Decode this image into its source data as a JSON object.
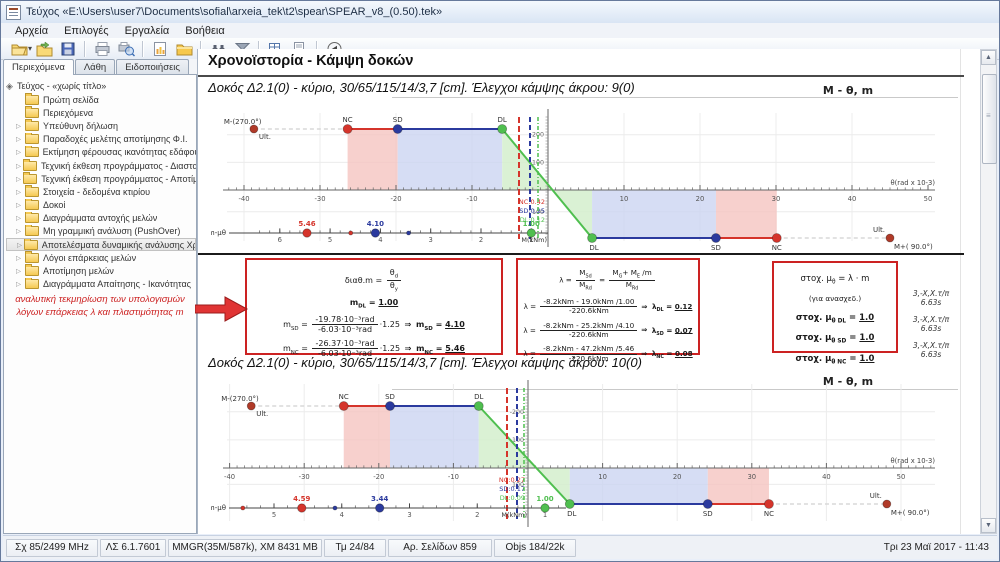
{
  "window": {
    "title": "Τεύχος «E:\\Users\\user7\\Documents\\sofial\\arxeia_tek\\t2\\spear\\SPEAR_v8_(0.50).tek»"
  },
  "menu": {
    "items": [
      "Αρχεία",
      "Επιλογές",
      "Εργαλεία",
      "Βοήθεια"
    ]
  },
  "toolbar": {
    "icons": [
      "open-file",
      "import-file",
      "save",
      "print",
      "print-preview",
      "chart-document",
      "folder",
      "search-binoculars",
      "filter",
      "export-table",
      "report-save",
      "back"
    ]
  },
  "sidebar": {
    "tabs": [
      "Περιεχόμενα",
      "Λάθη",
      "Ειδοποιήσεις"
    ],
    "active_tab": "Περιεχόμενα",
    "root_label": "Τεύχος - «χωρίς τίτλο»",
    "items": [
      {
        "label": "Πρώτη σελίδα",
        "expandable": false,
        "selected": false
      },
      {
        "label": "Περιεχόμενα",
        "expandable": false,
        "selected": false
      },
      {
        "label": "Υπεύθυνη δήλωση",
        "expandable": true,
        "selected": false
      },
      {
        "label": "Παραδοχές μελέτης αποτίμησης Φ.Ι.",
        "expandable": true,
        "selected": false
      },
      {
        "label": "Εκτίμηση φέρουσας ικανότητας εδάφους",
        "expandable": true,
        "selected": false
      },
      {
        "label": "Τεχνική έκθεση προγράμματος - Διαστασιολόγηση",
        "expandable": true,
        "selected": false
      },
      {
        "label": "Τεχνική έκθεση προγράμματος - Αποτίμησης Φ.Ι.",
        "expandable": true,
        "selected": false
      },
      {
        "label": "Στοιχεία - δεδομένα κτιρίου",
        "expandable": true,
        "selected": false
      },
      {
        "label": "Δοκοί",
        "expandable": true,
        "selected": false
      },
      {
        "label": "Διαγράμματα αντοχής μελών",
        "expandable": true,
        "selected": false
      },
      {
        "label": "Μη γραμμική ανάλυση (PushOver)",
        "expandable": true,
        "selected": false
      },
      {
        "label": "Αποτελέσματα δυναμικής ανάλυσης Χρονοϊστορίας",
        "expandable": true,
        "selected": true
      },
      {
        "label": "Λόγοι επάρκειας μελών",
        "expandable": true,
        "selected": false
      },
      {
        "label": "Αποτίμηση μελών",
        "expandable": true,
        "selected": false
      },
      {
        "label": "Διαγράμματα Απαίτησης - Ικανότητας",
        "expandable": true,
        "selected": false
      }
    ]
  },
  "annotation": {
    "l1": "αναλυτική τεκμηρίωση των υπολογισμών",
    "l2": "λόγων επάρκειας λ και πλαστιμότητας m"
  },
  "content": {
    "heading": "Χρονοϊστορία - Κάμψη δοκών",
    "sections": [
      {
        "heading": "Δοκός Δ2.1(0) - κύριο, 30/65/115/14/3,7 [cm]. Έλεγχοι κάμψης άκρου: 9(0)",
        "chart_title": "M - θ, m"
      },
      {
        "heading": "Δοκός Δ2.1(0) - κύριο, 30/65/115/14/3,7 [cm]. Έλεγχοι κάμψης άκρου: 10(0)",
        "chart_title": "M - θ, m"
      }
    ],
    "side_notes": [
      {
        "a": "3,-X,X.τ/π",
        "b": "6.63s"
      },
      {
        "a": "3,-X,X.τ/π",
        "b": "6.63s"
      },
      {
        "a": "3,-X,X.τ/π",
        "b": "6.63s"
      }
    ]
  },
  "formulas": {
    "boxes": [
      {
        "lines": [
          [
            {
              "s": "διαθ.m = "
            },
            {
              "frac": [
                [
                  {
                    "s": "θ"
                  },
                  {
                    "sub": "d"
                  }
                ],
                [
                  {
                    "s": "θ"
                  },
                  {
                    "sub": "y"
                  }
                ]
              ]
            }
          ],
          [
            {
              "s": "m",
              "b": 1
            },
            {
              "sub": "DL",
              "b": 1
            },
            {
              "s": " = ",
              "b": 1
            },
            {
              "res": "1.00"
            }
          ],
          [
            {
              "s": "m"
            },
            {
              "sub": "SD"
            },
            {
              "s": " = "
            },
            {
              "frac": [
                [
                  {
                    "s": "-19.78·10⁻³rad"
                  }
                ],
                [
                  {
                    "s": "-6.03·10⁻³rad"
                  }
                ]
              ]
            },
            {
              "s": "·1.25 "
            },
            {
              "arr": 1
            },
            {
              "s": " m",
              "b": 1
            },
            {
              "sub": "SD",
              "b": 1
            },
            {
              "s": " = ",
              "b": 1
            },
            {
              "res": "4.10"
            }
          ],
          [
            {
              "s": "m"
            },
            {
              "sub": "NC"
            },
            {
              "s": " = "
            },
            {
              "frac": [
                [
                  {
                    "s": "-26.37·10⁻³rad"
                  }
                ],
                [
                  {
                    "s": "-6.03·10⁻³rad"
                  }
                ]
              ]
            },
            {
              "s": "·1.25 "
            },
            {
              "arr": 1
            },
            {
              "s": " m",
              "b": 1
            },
            {
              "sub": "NC",
              "b": 1
            },
            {
              "s": " = ",
              "b": 1
            },
            {
              "res": "5.46"
            }
          ]
        ]
      },
      {
        "lines": [
          [
            {
              "s": "λ = "
            },
            {
              "frac": [
                [
                  {
                    "s": "M"
                  },
                  {
                    "sub": "Sd"
                  }
                ],
                [
                  {
                    "s": "M"
                  },
                  {
                    "sub": "Rd"
                  }
                ]
              ]
            },
            {
              "s": " = "
            },
            {
              "frac": [
                [
                  {
                    "s": "M"
                  },
                  {
                    "sub": "G"
                  },
                  {
                    "s": "+ M"
                  },
                  {
                    "sub": "E"
                  },
                  {
                    "s": " /m"
                  }
                ],
                [
                  {
                    "s": "M"
                  },
                  {
                    "sub": "Rd"
                  }
                ]
              ]
            }
          ],
          [
            {
              "s": "λ = "
            },
            {
              "frac": [
                [
                  {
                    "s": "-8.2kNm - 19.0kNm /1.00"
                  }
                ],
                [
                  {
                    "s": "-220.6kNm"
                  }
                ]
              ]
            },
            {
              "arr": 1
            },
            {
              "s": " λ",
              "b": 1
            },
            {
              "sub": "DL",
              "b": 1
            },
            {
              "s": " = ",
              "b": 1
            },
            {
              "res": "0.12"
            }
          ],
          [
            {
              "s": "λ = "
            },
            {
              "frac": [
                [
                  {
                    "s": "-8.2kNm - 25.2kNm /4.10"
                  }
                ],
                [
                  {
                    "s": "-220.6kNm"
                  }
                ]
              ]
            },
            {
              "arr": 1
            },
            {
              "s": " λ",
              "b": 1
            },
            {
              "sub": "SD",
              "b": 1
            },
            {
              "s": " = ",
              "b": 1
            },
            {
              "res": "0.07"
            }
          ],
          [
            {
              "s": "λ = "
            },
            {
              "frac": [
                [
                  {
                    "s": "-8.2kNm - 47.2kNm /5.46"
                  }
                ],
                [
                  {
                    "s": "-220.6kNm"
                  }
                ]
              ]
            },
            {
              "arr": 1
            },
            {
              "s": " λ",
              "b": 1
            },
            {
              "sub": "NC",
              "b": 1
            },
            {
              "s": " = ",
              "b": 1
            },
            {
              "res": "0.08"
            }
          ]
        ]
      },
      {
        "lines": [
          [
            {
              "s": "στοχ. μ"
            },
            {
              "sub": "θ"
            },
            {
              "s": " = λ · m"
            }
          ],
          [
            {
              "s": "(για ανασχεδ.)",
              "sm": 1
            }
          ],
          [
            {
              "s": "στοχ. μ",
              "b": 1
            },
            {
              "sub": "θ DL",
              "b": 1
            },
            {
              "s": " = ",
              "b": 1
            },
            {
              "res": "1.0"
            }
          ],
          [
            {
              "s": "στοχ. μ",
              "b": 1
            },
            {
              "sub": "θ SD",
              "b": 1
            },
            {
              "s": " = ",
              "b": 1
            },
            {
              "res": "1.0"
            }
          ],
          [
            {
              "s": "στοχ. μ",
              "b": 1
            },
            {
              "sub": "θ NC",
              "b": 1
            },
            {
              "s": " = ",
              "b": 1
            },
            {
              "res": "1.0"
            }
          ]
        ]
      }
    ]
  },
  "colors": {
    "red": "#d5342b",
    "blue": "#2b3a9e",
    "green": "#4fbf4f",
    "ult": "#b03a28",
    "pink_fill": "#f5c4c0",
    "blue_fill": "#ccd4f1",
    "green_fill": "#d4efcc",
    "accent_red": "#cc2222"
  },
  "chart_data": [
    {
      "type": "line",
      "title": "M - θ, m",
      "xlabel": "θ(rad x 10-3)",
      "ylabel": "M(kNm)",
      "m_axis_label": "m-μθ",
      "neg_label": "M-(270.0°)",
      "pos_label": "M+( 90.0°)",
      "ult_label": "Ult.",
      "x_ticks": [
        -40,
        -30,
        -20,
        -10,
        10,
        20,
        30,
        40
      ],
      "y_ticks": [
        -200,
        -100,
        100
      ],
      "xmin": -43,
      "xmax": 50.9,
      "M_neg": -220.6,
      "M_pos": 220.6,
      "neg_points": {
        "Ult": -38.7,
        "NC": -26.37,
        "SD": -19.78,
        "DL": -6.03
      },
      "pos_points": {
        "DL": 5.8,
        "SD": 22.1,
        "NC": 30.1,
        "Ult": 45.0
      },
      "theta_checks": {
        "NC": 0.42,
        "SD": 0.25,
        "DL": 0.12
      },
      "m_values": {
        "NC": 5.46,
        "SD": 4.1,
        "DL": 1.0
      },
      "m_other_end": {
        "NC": 4.59,
        "SD": 3.44
      },
      "m_ticks": [
        6,
        5,
        4,
        3,
        2,
        1
      ],
      "layout": {
        "h": 152,
        "ox": 337,
        "sx": 7.6,
        "negY": 26,
        "axisY": 87,
        "posY": 135,
        "mY": 130,
        "m_x0": 370.6,
        "m_dx": 50.3,
        "m_end": 337,
        "checks_x": [
          308,
          319,
          327
        ],
        "clY": 101
      }
    },
    {
      "type": "line",
      "title": "M - θ, m",
      "xlabel": "θ(rad x 10-3)",
      "ylabel": "M(kNm)",
      "m_axis_label": "m-μθ",
      "neg_label": "M-(270.0°)",
      "pos_label": "M+( 90.0°)",
      "ult_label": "Ult.",
      "x_ticks": [
        -40,
        -30,
        -20,
        -10,
        10,
        20,
        30,
        40,
        50
      ],
      "y_ticks": [
        -200,
        -100,
        100
      ],
      "xmin": -41,
      "xmax": 54.5,
      "M_neg": -220.6,
      "M_pos": 220.6,
      "neg_points": {
        "Ult": -37.1,
        "NC": -24.7,
        "SD": -18.5,
        "DL": -6.6
      },
      "pos_points": {
        "DL": 5.6,
        "SD": 24.1,
        "NC": 32.3,
        "Ult": 48.1
      },
      "theta_checks": {
        "NC": 0.27,
        "SD": 0.17,
        "DL": 0.09
      },
      "m_values": {
        "NC": 4.59,
        "SD": 3.44,
        "DL": 1.0
      },
      "m_other_end": {
        "NC": 5.46,
        "SD": 4.1
      },
      "m_ticks": [
        5,
        4,
        3,
        2,
        1
      ],
      "layout": {
        "h": 161,
        "ox": 317,
        "sx": 7.46,
        "negY": 32,
        "axisY": 94,
        "posY": 130,
        "mY": 134,
        "m_x0": 401.75,
        "m_dx": 67.75,
        "m_end": 355,
        "checks_x": [
          296,
          306,
          313
        ],
        "clY": 108
      }
    }
  ],
  "statusbar": {
    "cells": [
      "Σχ 85/2499 MHz",
      "ΛΣ 6.1.7601",
      "MMGR(35M/587k), XM 8431 MB",
      "Τμ 24/84",
      "Αρ. Σελίδων 859",
      "Objs 184/22k"
    ],
    "datetime": "Τρι 23 Μαϊ 2017 - 11:43"
  }
}
